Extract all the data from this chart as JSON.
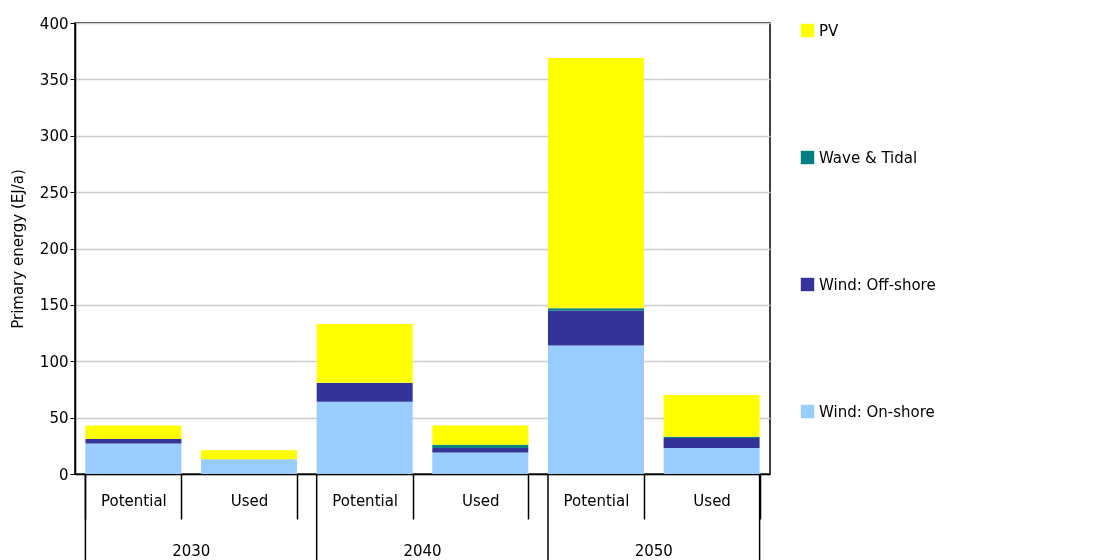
{
  "chart_data": {
    "type": "bar",
    "stacked": true,
    "ylabel": "Primary energy (EJ/a)",
    "categories": [
      "Potential",
      "Used",
      "Potential",
      "Used",
      "Potential",
      "Used"
    ],
    "annotations": [
      "2030",
      "2040",
      "2050"
    ],
    "series": [
      {
        "name": "Wind: On-shore",
        "color": "#99ccff",
        "values": [
          27,
          13,
          64,
          19,
          114,
          23
        ]
      },
      {
        "name": "Wind: Off-shore",
        "color": "#333399",
        "values": [
          4,
          0,
          17,
          4,
          31,
          9
        ]
      },
      {
        "name": "Wave & Tidal",
        "color": "#008080",
        "values": [
          0,
          0,
          0,
          3,
          2,
          1
        ]
      },
      {
        "name": "PV",
        "color": "#ffff00",
        "values": [
          12,
          8,
          52,
          17,
          222,
          37
        ]
      }
    ],
    "ylim": [
      0,
      400
    ],
    "yticks": [
      0,
      50,
      100,
      150,
      200,
      250,
      300,
      350,
      400
    ],
    "grid": "y",
    "legend": "right"
  }
}
